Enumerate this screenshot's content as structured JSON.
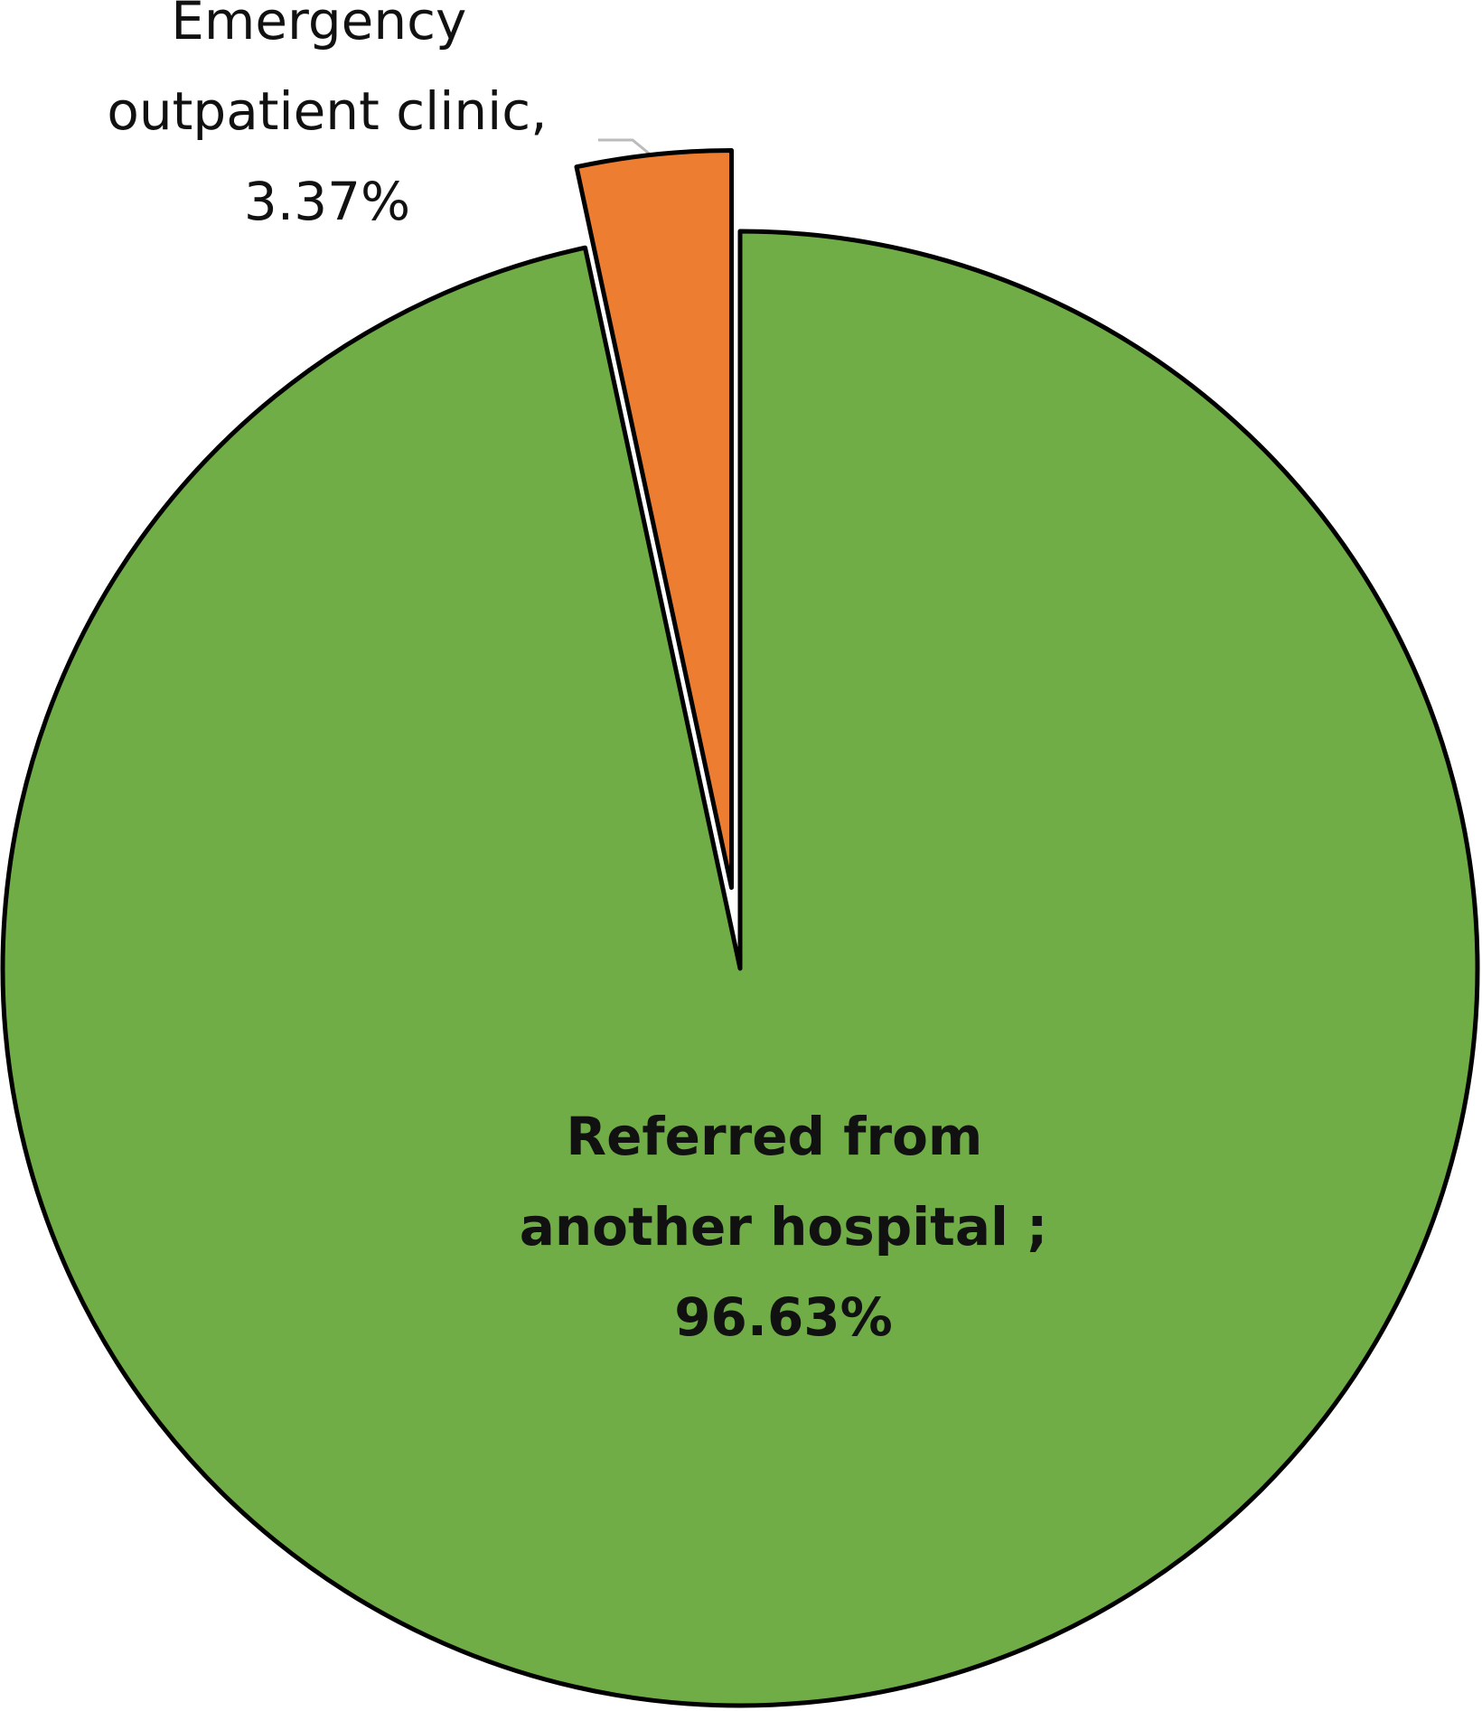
{
  "chart_data": {
    "type": "pie",
    "categories": [
      "Referred from another hospital ;",
      "Emergency outpatient clinic,"
    ],
    "values": [
      96.63,
      3.37
    ],
    "value_labels": [
      "96.63%",
      "3.37%"
    ],
    "colors": [
      "#70ad47",
      "#ed7d31"
    ],
    "exploded": [
      false,
      true
    ]
  }
}
